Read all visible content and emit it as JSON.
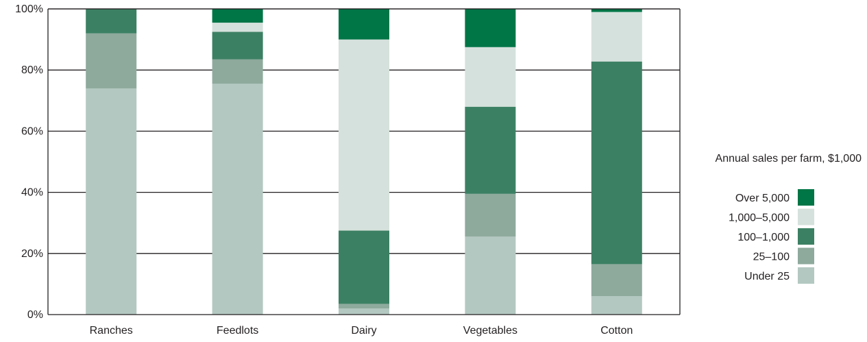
{
  "chart_data": {
    "type": "bar",
    "stacked": true,
    "categories": [
      "Ranches",
      "Feedlots",
      "Dairy",
      "Vegetables",
      "Cotton"
    ],
    "series": [
      {
        "name": "Under 25",
        "color": "#b3c8c1",
        "values": [
          74,
          75.5,
          2,
          25.5,
          6
        ]
      },
      {
        "name": "25–100",
        "color": "#8eaa9d",
        "values": [
          18,
          8,
          1.5,
          14,
          10.5
        ]
      },
      {
        "name": "100–1,000",
        "color": "#3c8063",
        "values": [
          8,
          9,
          24,
          28.5,
          66.3
        ]
      },
      {
        "name": "1,000–5,000",
        "color": "#d5e1dc",
        "values": [
          0,
          3,
          62.5,
          19.5,
          16.2
        ]
      },
      {
        "name": "Over 5,000",
        "color": "#007546",
        "values": [
          0,
          4.5,
          10,
          12.5,
          1
        ]
      }
    ],
    "ylim": [
      0,
      100
    ],
    "yticks": [
      "0%",
      "20%",
      "40%",
      "60%",
      "80%",
      "100%"
    ],
    "grid": true,
    "legend": {
      "title": "Annual sales per farm, $1,000",
      "position": "right",
      "order": [
        "Over 5,000",
        "1,000–5,000",
        "100–1,000",
        "25–100",
        "Under 25"
      ]
    }
  }
}
